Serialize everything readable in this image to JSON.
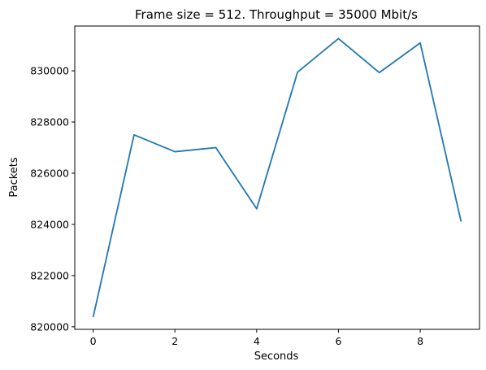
{
  "chart_data": {
    "type": "line",
    "title": "Frame size = 512. Throughput = 35000 Mbit/s",
    "xlabel": "Seconds",
    "ylabel": "Packets",
    "xlim": [
      -0.45,
      9.45
    ],
    "ylim": [
      819900,
      831750
    ],
    "xticks": [
      0,
      2,
      4,
      6,
      8
    ],
    "xtick_labels": [
      "0",
      "2",
      "4",
      "6",
      "8"
    ],
    "yticks": [
      820000,
      822000,
      824000,
      826000,
      828000,
      830000
    ],
    "ytick_labels": [
      "820000",
      "822000",
      "824000",
      "826000",
      "828000",
      "830000"
    ],
    "grid": false,
    "legend": "none",
    "series": [
      {
        "color": "#1f77b4",
        "x": [
          0,
          1,
          2,
          3,
          4,
          5,
          6,
          7,
          8,
          9
        ],
        "y": [
          820380,
          827500,
          826840,
          827000,
          824610,
          829950,
          831260,
          829930,
          831090,
          824110
        ]
      }
    ]
  }
}
